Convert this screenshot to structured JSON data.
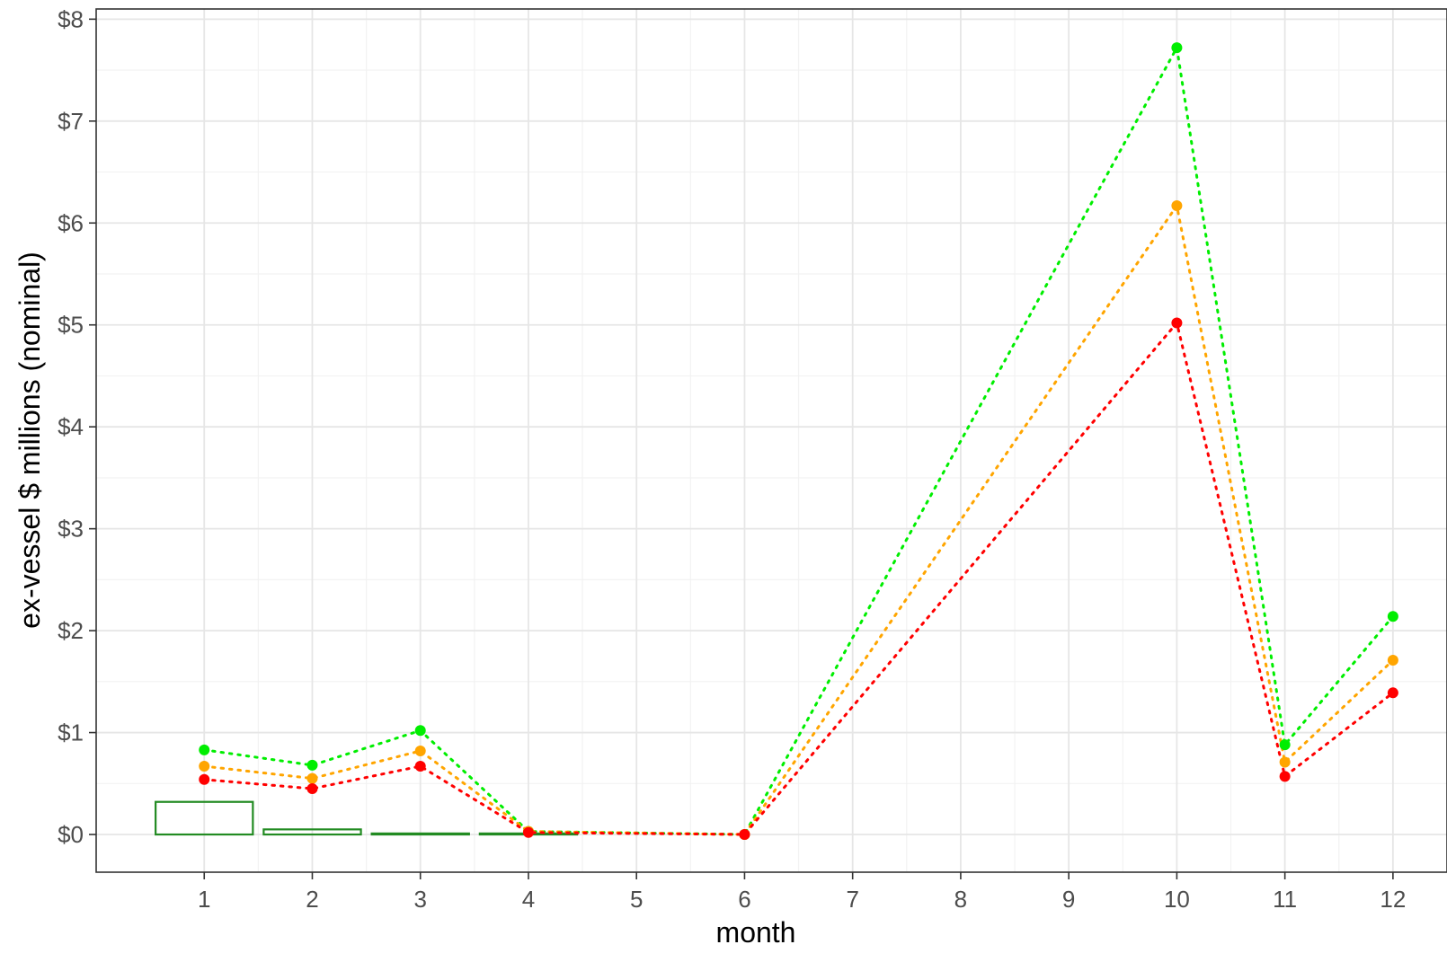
{
  "chart_data": {
    "type": "line",
    "title": "",
    "xlabel": "month",
    "ylabel": "ex-vessel $ millions (nominal)",
    "x": [
      1,
      2,
      3,
      4,
      5,
      6,
      7,
      8,
      9,
      10,
      11,
      12
    ],
    "x_ticks": [
      "1",
      "2",
      "3",
      "4",
      "5",
      "6",
      "7",
      "8",
      "9",
      "10",
      "11",
      "12"
    ],
    "y_ticks": [
      {
        "value": 0,
        "label": "$0"
      },
      {
        "value": 1,
        "label": "$1"
      },
      {
        "value": 2,
        "label": "$2"
      },
      {
        "value": 3,
        "label": "$3"
      },
      {
        "value": 4,
        "label": "$4"
      },
      {
        "value": 5,
        "label": "$5"
      },
      {
        "value": 6,
        "label": "$6"
      },
      {
        "value": 7,
        "label": "$7"
      },
      {
        "value": 8,
        "label": "$8"
      }
    ],
    "xlim": [
      0,
      12.5
    ],
    "ylim": [
      -0.37,
      8.1
    ],
    "grid": true,
    "legend": "none",
    "series": [
      {
        "color": "#00ee00",
        "style": "dotted line with points",
        "points": [
          [
            1,
            0.83
          ],
          [
            2,
            0.68
          ],
          [
            3,
            1.02
          ],
          [
            4,
            0.03
          ],
          [
            6,
            0.0
          ],
          [
            10,
            7.72
          ],
          [
            11,
            0.88
          ],
          [
            12,
            2.14
          ]
        ]
      },
      {
        "color": "#ffa500",
        "style": "dotted line with points",
        "points": [
          [
            1,
            0.67
          ],
          [
            2,
            0.55
          ],
          [
            3,
            0.82
          ],
          [
            4,
            0.03
          ],
          [
            6,
            0.0
          ],
          [
            10,
            6.17
          ],
          [
            11,
            0.71
          ],
          [
            12,
            1.71
          ]
        ]
      },
      {
        "color": "#ff0000",
        "style": "dotted line with points",
        "points": [
          [
            1,
            0.54
          ],
          [
            2,
            0.45
          ],
          [
            3,
            0.67
          ],
          [
            4,
            0.02
          ],
          [
            6,
            0.0
          ],
          [
            10,
            5.02
          ],
          [
            11,
            0.57
          ],
          [
            12,
            1.39
          ]
        ]
      }
    ],
    "bars": {
      "color": "#228b22",
      "style": "outlined, no fill",
      "categories": [
        1,
        2,
        3,
        4
      ],
      "values": [
        0.32,
        0.05,
        0.01,
        0.01
      ]
    }
  }
}
